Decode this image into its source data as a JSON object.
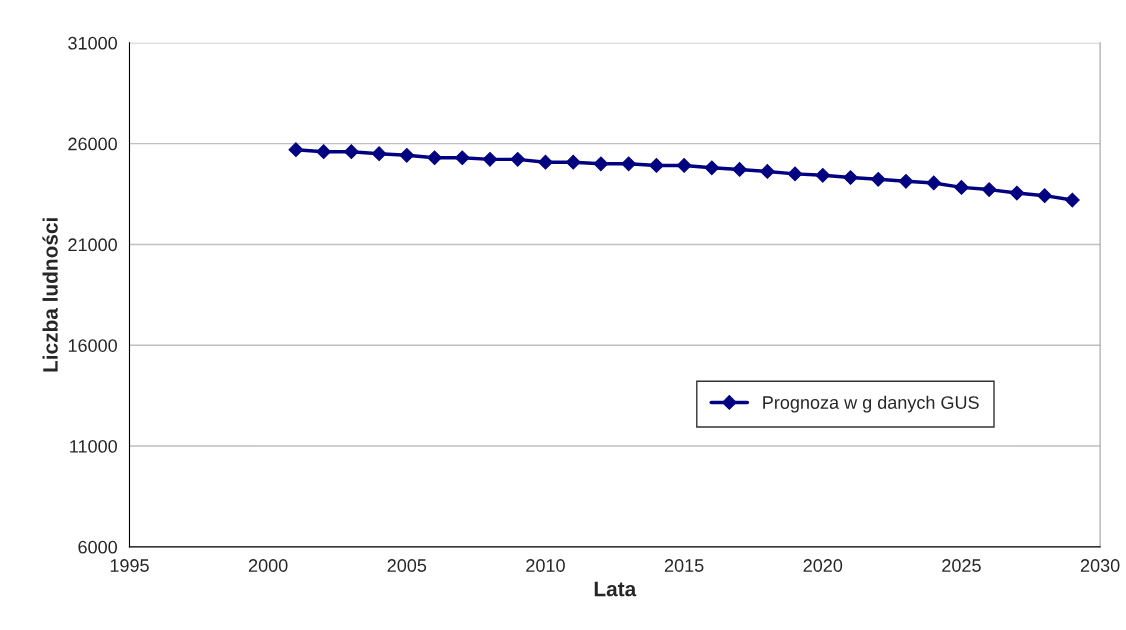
{
  "chart_data": {
    "type": "line",
    "xlabel": "Lata",
    "ylabel": "Liczba ludności",
    "x": [
      2001,
      2002,
      2003,
      2004,
      2005,
      2006,
      2007,
      2008,
      2009,
      2010,
      2011,
      2012,
      2013,
      2014,
      2015,
      2016,
      2017,
      2018,
      2019,
      2020,
      2021,
      2022,
      2023,
      2024,
      2025,
      2026,
      2027,
      2028,
      2029
    ],
    "series": [
      {
        "name": "Prognoza w g danych GUS",
        "color": "#000080",
        "values": [
          25700,
          25600,
          25600,
          25500,
          25420,
          25300,
          25300,
          25220,
          25220,
          25080,
          25080,
          25000,
          25000,
          24920,
          24920,
          24800,
          24720,
          24620,
          24500,
          24430,
          24320,
          24230,
          24130,
          24050,
          23830,
          23720,
          23550,
          23420,
          23200
        ]
      }
    ],
    "xlim": [
      1995,
      2030
    ],
    "xticks": [
      1995,
      2000,
      2005,
      2010,
      2015,
      2020,
      2025,
      2030
    ],
    "ylim": [
      6000,
      31000
    ],
    "yticks": [
      6000,
      11000,
      16000,
      21000,
      26000,
      31000
    ],
    "grid": "y",
    "legend": "lower right",
    "marker": "diamond",
    "line_style": "solid"
  }
}
